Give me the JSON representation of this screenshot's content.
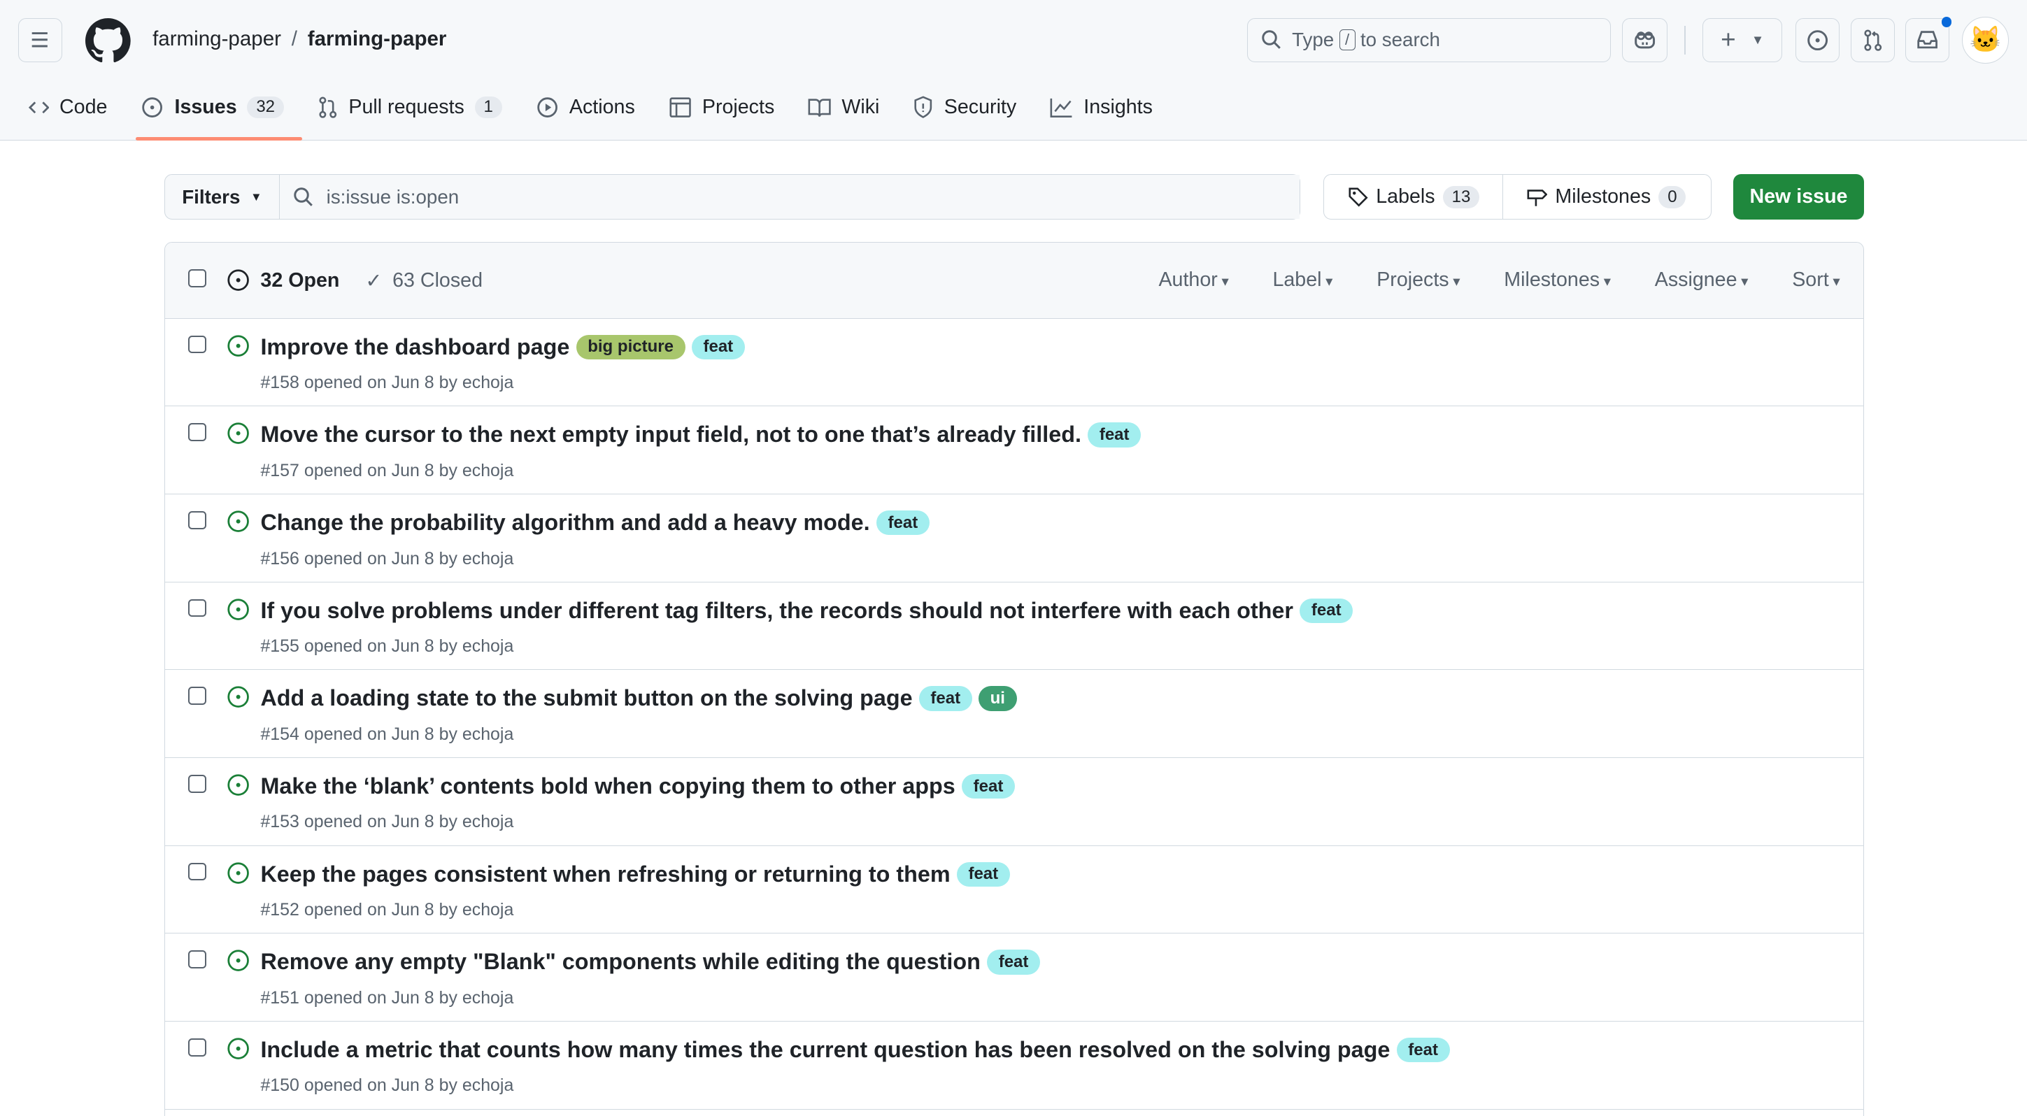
{
  "header": {
    "owner": "farming-paper",
    "repo": "farming-paper",
    "search_placeholder_pre": "Type",
    "search_key": "/",
    "search_placeholder_post": "to search"
  },
  "tabs": [
    {
      "label": "Code",
      "icon": "code-icon"
    },
    {
      "label": "Issues",
      "count": "32",
      "icon": "issue-opened-icon",
      "selected": true
    },
    {
      "label": "Pull requests",
      "count": "1",
      "icon": "git-pull-request-icon"
    },
    {
      "label": "Actions",
      "icon": "play-icon"
    },
    {
      "label": "Projects",
      "icon": "table-icon"
    },
    {
      "label": "Wiki",
      "icon": "book-icon"
    },
    {
      "label": "Security",
      "icon": "shield-icon"
    },
    {
      "label": "Insights",
      "icon": "graph-icon"
    }
  ],
  "toolbar": {
    "filters": "Filters",
    "query": "is:issue is:open",
    "labels": "Labels",
    "labels_count": "13",
    "milestones": "Milestones",
    "milestones_count": "0",
    "new_issue": "New issue"
  },
  "list": {
    "open": "32 Open",
    "closed": "63 Closed",
    "sorts": [
      "Author",
      "Label",
      "Projects",
      "Milestones",
      "Assignee",
      "Sort"
    ],
    "issues": [
      {
        "title": "Improve the dashboard page",
        "labels": [
          {
            "name": "big picture",
            "color": "#a8c66c"
          },
          {
            "name": "feat",
            "color": "#a2eeef"
          }
        ],
        "meta": "#158 opened on Jun 8 by echoja"
      },
      {
        "title": "Move the cursor to the next empty input field, not to one that’s already filled.",
        "labels": [
          {
            "name": "feat",
            "color": "#a2eeef"
          }
        ],
        "meta": "#157 opened on Jun 8 by echoja"
      },
      {
        "title": "Change the probability algorithm and add a heavy mode.",
        "labels": [
          {
            "name": "feat",
            "color": "#a2eeef"
          }
        ],
        "meta": "#156 opened on Jun 8 by echoja"
      },
      {
        "title": "If you solve problems under different tag filters, the records should not interfere with each other",
        "labels": [
          {
            "name": "feat",
            "color": "#a2eeef"
          }
        ],
        "meta": "#155 opened on Jun 8 by echoja"
      },
      {
        "title": "Add a loading state to the submit button on the solving page",
        "labels": [
          {
            "name": "feat",
            "color": "#a2eeef"
          },
          {
            "name": "ui",
            "color": "#3e9f72"
          }
        ],
        "meta": "#154 opened on Jun 8 by echoja"
      },
      {
        "title": "Make the ‘blank’ contents bold when copying them to other apps",
        "labels": [
          {
            "name": "feat",
            "color": "#a2eeef"
          }
        ],
        "meta": "#153 opened on Jun 8 by echoja"
      },
      {
        "title": "Keep the pages consistent when refreshing or returning to them",
        "labels": [
          {
            "name": "feat",
            "color": "#a2eeef"
          }
        ],
        "meta": "#152 opened on Jun 8 by echoja"
      },
      {
        "title": "Remove any empty \"Blank\" components while editing the question",
        "labels": [
          {
            "name": "feat",
            "color": "#a2eeef"
          }
        ],
        "meta": "#151 opened on Jun 8 by echoja"
      },
      {
        "title": "Include a metric that counts how many times the current question has been resolved on the solving page",
        "labels": [
          {
            "name": "feat",
            "color": "#a2eeef"
          }
        ],
        "meta": "#150 opened on Jun 8 by echoja"
      }
    ]
  },
  "colors": {
    "accent": "#1f883d",
    "open": "#1a7f37",
    "tab_underline": "#fd8c73",
    "notification": "#0969da"
  }
}
